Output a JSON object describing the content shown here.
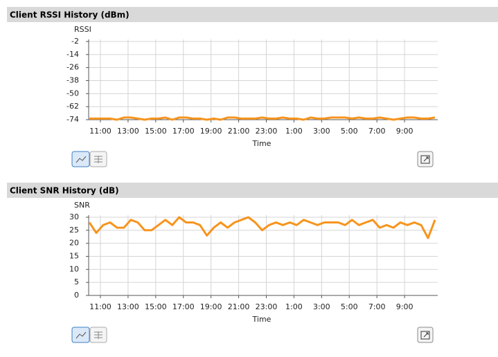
{
  "chart_data": [
    {
      "type": "line",
      "title": "Client RSSI History (dBm)",
      "ylabel": "RSSI",
      "xlabel": "Time",
      "color": "#f7941d",
      "grid": true,
      "ylim": [
        -74,
        -2
      ],
      "yticks": [
        -2,
        -14,
        -26,
        -38,
        -50,
        -62,
        -74
      ],
      "xlim": [
        10.15,
        35.4
      ],
      "xticks": [
        {
          "value": 11,
          "label": "11:00"
        },
        {
          "value": 13,
          "label": "13:00"
        },
        {
          "value": 15,
          "label": "15:00"
        },
        {
          "value": 17,
          "label": "17:00"
        },
        {
          "value": 19,
          "label": "19:00"
        },
        {
          "value": 21,
          "label": "21:00"
        },
        {
          "value": 23,
          "label": "23:00"
        },
        {
          "value": 25,
          "label": "1:00"
        },
        {
          "value": 27,
          "label": "3:00"
        },
        {
          "value": 29,
          "label": "5:00"
        },
        {
          "value": 31,
          "label": "7:00"
        },
        {
          "value": 33,
          "label": "9:00"
        }
      ],
      "x": [
        10.2,
        10.7,
        11.2,
        11.7,
        12.2,
        12.7,
        13.2,
        13.7,
        14.2,
        14.7,
        15.2,
        15.7,
        16.2,
        16.7,
        17.2,
        17.7,
        18.2,
        18.7,
        19.2,
        19.7,
        20.2,
        20.7,
        21.2,
        21.7,
        22.2,
        22.7,
        23.2,
        23.7,
        24.2,
        24.7,
        25.2,
        25.7,
        26.2,
        26.7,
        27.2,
        27.7,
        28.2,
        28.7,
        29.2,
        29.7,
        30.2,
        30.7,
        31.2,
        31.7,
        32.2,
        32.7,
        33.2,
        33.7,
        34.2,
        34.7,
        35.2
      ],
      "values": [
        -73,
        -73,
        -73,
        -73,
        -74,
        -72,
        -72,
        -73,
        -74,
        -73,
        -73,
        -72,
        -74,
        -72,
        -72,
        -73,
        -73,
        -74,
        -73,
        -74,
        -72,
        -72,
        -73,
        -73,
        -73,
        -72,
        -73,
        -73,
        -72,
        -73,
        -73,
        -74,
        -72,
        -73,
        -73,
        -72,
        -72,
        -72,
        -73,
        -72,
        -73,
        -73,
        -72,
        -73,
        -74,
        -73,
        -72,
        -72,
        -73,
        -73,
        -72
      ]
    },
    {
      "type": "line",
      "title": "Client SNR History (dB)",
      "ylabel": "SNR",
      "xlabel": "Time",
      "color": "#f7941d",
      "grid": true,
      "ylim": [
        0,
        30
      ],
      "yticks": [
        30,
        25,
        20,
        15,
        10,
        5,
        0
      ],
      "xlim": [
        10.15,
        35.4
      ],
      "xticks": [
        {
          "value": 11,
          "label": "11:00"
        },
        {
          "value": 13,
          "label": "13:00"
        },
        {
          "value": 15,
          "label": "15:00"
        },
        {
          "value": 17,
          "label": "17:00"
        },
        {
          "value": 19,
          "label": "19:00"
        },
        {
          "value": 21,
          "label": "21:00"
        },
        {
          "value": 23,
          "label": "23:00"
        },
        {
          "value": 25,
          "label": "1:00"
        },
        {
          "value": 27,
          "label": "3:00"
        },
        {
          "value": 29,
          "label": "5:00"
        },
        {
          "value": 31,
          "label": "7:00"
        },
        {
          "value": 33,
          "label": "9:00"
        }
      ],
      "x": [
        10.2,
        10.7,
        11.2,
        11.7,
        12.2,
        12.7,
        13.2,
        13.7,
        14.2,
        14.7,
        15.2,
        15.7,
        16.2,
        16.7,
        17.2,
        17.7,
        18.2,
        18.7,
        19.2,
        19.7,
        20.2,
        20.7,
        21.2,
        21.7,
        22.2,
        22.7,
        23.2,
        23.7,
        24.2,
        24.7,
        25.2,
        25.7,
        26.2,
        26.7,
        27.2,
        27.7,
        28.2,
        28.7,
        29.2,
        29.7,
        30.2,
        30.7,
        31.2,
        31.7,
        32.2,
        32.7,
        33.2,
        33.7,
        34.2,
        34.7,
        35.2
      ],
      "values": [
        28,
        24,
        27,
        28,
        26,
        26,
        29,
        28,
        25,
        25,
        27,
        29,
        27,
        30,
        28,
        28,
        27,
        23,
        26,
        28,
        26,
        28,
        29,
        30,
        28,
        25,
        27,
        28,
        27,
        28,
        27,
        29,
        28,
        27,
        28,
        28,
        28,
        27,
        29,
        27,
        28,
        29,
        26,
        27,
        26,
        28,
        27,
        28,
        27,
        22,
        29
      ]
    }
  ]
}
